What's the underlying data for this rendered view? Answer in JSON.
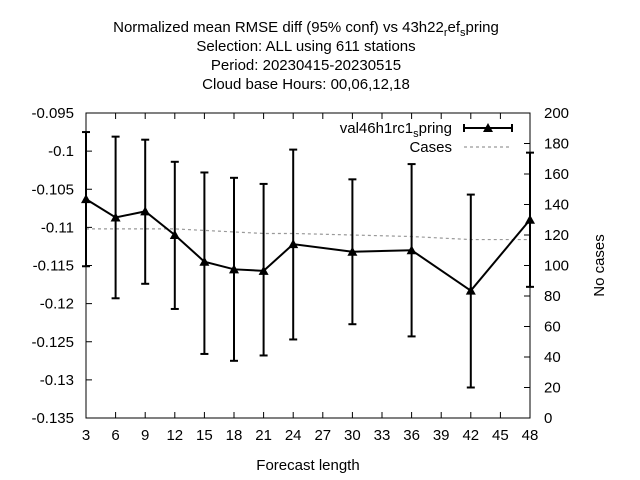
{
  "chart_data": {
    "type": "line",
    "title_lines": [
      [
        "Normalized mean RMSE diff (95% conf) vs 43h22",
        {
          "sub": "r"
        },
        "ef",
        {
          "sub": "s"
        },
        "pring"
      ],
      [
        "Selection: ALL using   611 stations"
      ],
      [
        "Period: 20230415-20230515"
      ],
      [
        "Cloud base   Hours:  00,06,12,18"
      ]
    ],
    "xlabel": "Forecast length",
    "ylabel": "",
    "y2label": "No cases",
    "xlim": [
      3,
      48
    ],
    "ylim": [
      -0.135,
      -0.095
    ],
    "y2lim": [
      0,
      200
    ],
    "x_ticks": [
      3,
      6,
      9,
      12,
      15,
      18,
      21,
      24,
      27,
      30,
      33,
      36,
      39,
      42,
      45,
      48
    ],
    "y_ticks": [
      -0.135,
      -0.13,
      -0.125,
      -0.12,
      -0.115,
      -0.11,
      -0.105,
      -0.1,
      -0.095
    ],
    "y_tick_labels": [
      "-0.135",
      "-0.13",
      "-0.125",
      "-0.12",
      "-0.115",
      "-0.11",
      "-0.105",
      "-0.1",
      "-0.095"
    ],
    "y2_ticks": [
      0,
      20,
      40,
      60,
      80,
      100,
      120,
      140,
      160,
      180,
      200
    ],
    "grid": false,
    "legend_placement": "top-right",
    "series": [
      {
        "name_parts": [
          "val46h1rc1",
          {
            "sub": "s"
          },
          "pring"
        ],
        "type": "line-errorbars",
        "color": "#000000",
        "marker": "triangle",
        "x": [
          3,
          6,
          9,
          12,
          15,
          18,
          21,
          24,
          30,
          36,
          42,
          48
        ],
        "values": [
          -0.1063,
          -0.1087,
          -0.1079,
          -0.111,
          -0.1145,
          -0.1155,
          -0.1157,
          -0.1122,
          -0.1132,
          -0.113,
          -0.1183,
          -0.109
        ],
        "err_low": [
          -0.1151,
          -0.1193,
          -0.1174,
          -0.1207,
          -0.1266,
          -0.1275,
          -0.1268,
          -0.1247,
          -0.1227,
          -0.1243,
          -0.131,
          -0.1178
        ],
        "err_high": [
          -0.0975,
          -0.0981,
          -0.0985,
          -0.1014,
          -0.1028,
          -0.1035,
          -0.1043,
          -0.0998,
          -0.1037,
          -0.1017,
          -0.1057,
          -0.1002
        ]
      },
      {
        "name": "Cases",
        "type": "dashed-line",
        "axis": "right",
        "color": "#999999",
        "x": [
          3,
          6,
          9,
          12,
          15,
          18,
          21,
          24,
          30,
          36,
          42,
          48
        ],
        "values": [
          124,
          124,
          124,
          124,
          123,
          122,
          121,
          121,
          120,
          119,
          117,
          117
        ]
      }
    ]
  }
}
